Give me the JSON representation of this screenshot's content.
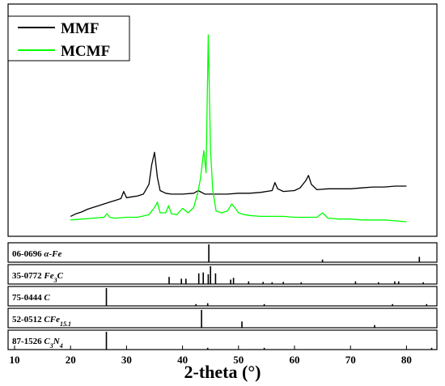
{
  "chart_data": {
    "type": "line",
    "xlabel": "2-theta (°)",
    "xlim": [
      10,
      85
    ],
    "x_ticks": [
      10,
      20,
      30,
      40,
      50,
      60,
      70,
      80
    ],
    "x_tick_labels": [
      "10",
      "20",
      "30",
      "40",
      "50",
      "60",
      "70",
      "80"
    ],
    "legend_position": "top-left",
    "main_panel": {
      "series": [
        {
          "name": "MMF",
          "color": "#000000",
          "x": [
            20,
            21,
            22,
            23,
            24,
            25,
            26,
            27,
            28,
            29,
            29.5,
            30,
            31,
            32,
            33,
            34,
            34.5,
            35,
            35.5,
            36,
            37,
            38,
            40,
            42,
            42.8,
            44,
            46,
            48,
            50,
            52,
            54,
            56,
            56.5,
            57,
            58,
            60,
            61,
            62,
            62.5,
            63,
            64,
            66,
            68,
            70,
            72,
            74,
            76,
            78,
            80
          ],
          "y": [
            0.16,
            0.19,
            0.21,
            0.24,
            0.26,
            0.28,
            0.3,
            0.32,
            0.34,
            0.36,
            0.44,
            0.37,
            0.38,
            0.39,
            0.41,
            0.52,
            0.74,
            0.88,
            0.6,
            0.45,
            0.42,
            0.41,
            0.41,
            0.42,
            0.45,
            0.41,
            0.41,
            0.41,
            0.42,
            0.42,
            0.43,
            0.45,
            0.54,
            0.47,
            0.44,
            0.45,
            0.48,
            0.56,
            0.62,
            0.52,
            0.46,
            0.47,
            0.47,
            0.47,
            0.48,
            0.49,
            0.49,
            0.5,
            0.5
          ]
        },
        {
          "name": "MCMF",
          "color": "#00ff00",
          "x": [
            20,
            22,
            24,
            26,
            26.5,
            27,
            28,
            30,
            32,
            34,
            35,
            35.5,
            36,
            37,
            37.5,
            38,
            39,
            40,
            41,
            42,
            42.7,
            43.2,
            43.8,
            44.2,
            44.6,
            45,
            45.4,
            46,
            47,
            48,
            48.8,
            49.3,
            50,
            51,
            52,
            54,
            56,
            58,
            60,
            62,
            64,
            65,
            66,
            68,
            70,
            72,
            74,
            76,
            78,
            80
          ],
          "y": [
            0.12,
            0.13,
            0.14,
            0.15,
            0.19,
            0.15,
            0.14,
            0.15,
            0.15,
            0.18,
            0.26,
            0.32,
            0.2,
            0.2,
            0.28,
            0.19,
            0.18,
            0.25,
            0.2,
            0.26,
            0.42,
            0.58,
            0.9,
            0.65,
            2.2,
            0.9,
            0.45,
            0.22,
            0.2,
            0.22,
            0.3,
            0.26,
            0.2,
            0.18,
            0.17,
            0.16,
            0.16,
            0.16,
            0.15,
            0.15,
            0.15,
            0.2,
            0.14,
            0.13,
            0.13,
            0.12,
            0.12,
            0.12,
            0.11,
            0.1
          ]
        }
      ]
    },
    "reference_panels": [
      {
        "code": "06-0696",
        "phase": "α-Fe",
        "peaks": [
          [
            44.7,
            1.0
          ],
          [
            65.0,
            0.15
          ],
          [
            82.3,
            0.3
          ]
        ]
      },
      {
        "code": "35-0772",
        "phase": "Fe3C",
        "peaks": [
          [
            37.6,
            0.4
          ],
          [
            39.8,
            0.3
          ],
          [
            40.6,
            0.3
          ],
          [
            42.9,
            0.6
          ],
          [
            43.7,
            0.65
          ],
          [
            44.6,
            0.55
          ],
          [
            45.0,
            1.0
          ],
          [
            45.9,
            0.6
          ],
          [
            48.6,
            0.25
          ],
          [
            49.1,
            0.35
          ],
          [
            51.8,
            0.15
          ],
          [
            54.4,
            0.12
          ],
          [
            56.0,
            0.1
          ],
          [
            58.0,
            0.12
          ],
          [
            61.2,
            0.1
          ],
          [
            70.9,
            0.15
          ],
          [
            75.0,
            0.1
          ],
          [
            77.9,
            0.15
          ],
          [
            78.6,
            0.15
          ],
          [
            83.0,
            0.1
          ]
        ]
      },
      {
        "code": "75-0444",
        "phase": "C",
        "peaks": [
          [
            26.4,
            1.0
          ],
          [
            42.4,
            0.1
          ],
          [
            44.5,
            0.15
          ],
          [
            54.6,
            0.1
          ],
          [
            77.5,
            0.1
          ],
          [
            83.6,
            0.1
          ]
        ]
      },
      {
        "code": "52-0512",
        "phase": "CFe15.1",
        "peaks": [
          [
            43.4,
            1.0
          ],
          [
            50.6,
            0.35
          ],
          [
            74.3,
            0.15
          ]
        ]
      },
      {
        "code": "87-1526",
        "phase": "C3N4",
        "peaks": [
          [
            26.4,
            1.0
          ],
          [
            44.5,
            0.1
          ],
          [
            54.6,
            0.1
          ],
          [
            84.5,
            0.1
          ]
        ]
      }
    ]
  }
}
